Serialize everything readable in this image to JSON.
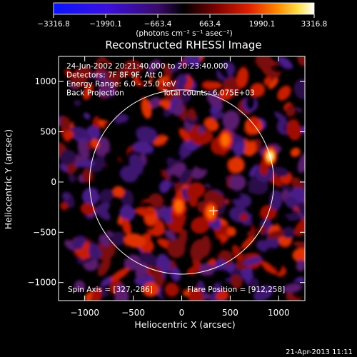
{
  "chart_data": {
    "type": "heatmap",
    "title": "Reconstructed RHESSI Image",
    "xlabel": "Heliocentric X (arcsec)",
    "ylabel": "Heliocentric Y (arcsec)",
    "xlim": [
      -1270,
      1270
    ],
    "ylim": [
      -1180,
      1250
    ],
    "x_ticks": [
      -1000,
      -500,
      0,
      500,
      1000
    ],
    "y_ticks": [
      -1000,
      -500,
      0,
      500,
      1000
    ],
    "x_tick_labels": [
      "−1000",
      "−500",
      "0",
      "500",
      "1000"
    ],
    "y_tick_labels": [
      "−1000",
      "−500",
      "0",
      "500",
      "1000"
    ],
    "colorbar": {
      "ticks": [
        -3316.8,
        -1990.1,
        -663.4,
        663.4,
        1990.1,
        3316.8
      ],
      "tick_labels": [
        "−3316.8",
        "−1990.1",
        "−663.4",
        "663.4",
        "1990.1",
        "3316.8"
      ],
      "unit_label": "(photons cm⁻² s⁻¹ asec⁻²)",
      "colormap": "rhessi-blue-black-red-yellow-white"
    },
    "annotations": {
      "time_range": "24-Jun-2002 20:21:40.000 to 20:23:40.000",
      "detectors": "Detectors: 7F 8F 9F, Att 0",
      "energy_range": "Energy Range: 6.0 - 25.0 keV",
      "method": "Back Projection",
      "total_counts": "Total counts: 6.075E+03",
      "spin_axis": "Spin Axis = [327,-286]",
      "flare_position": "Flare Position = [912,258]"
    },
    "solar_limb_radius_arcsec": 950,
    "solar_limb_center": [
      0,
      0
    ],
    "spin_axis_marker": [
      327,
      -286
    ],
    "bright_sources": [
      {
        "x": 912,
        "y": 258,
        "peak": 3316.8
      },
      {
        "x": 450,
        "y": 420,
        "peak": 1800
      },
      {
        "x": -30,
        "y": -240,
        "peak": 2100
      },
      {
        "x": 300,
        "y": -300,
        "peak": 1500
      }
    ]
  },
  "footer": {
    "timestamp": "21-Apr-2013 11:11"
  },
  "colors": {
    "background": "#000000",
    "limb": "#ffffff",
    "axes": "#ffffff"
  }
}
